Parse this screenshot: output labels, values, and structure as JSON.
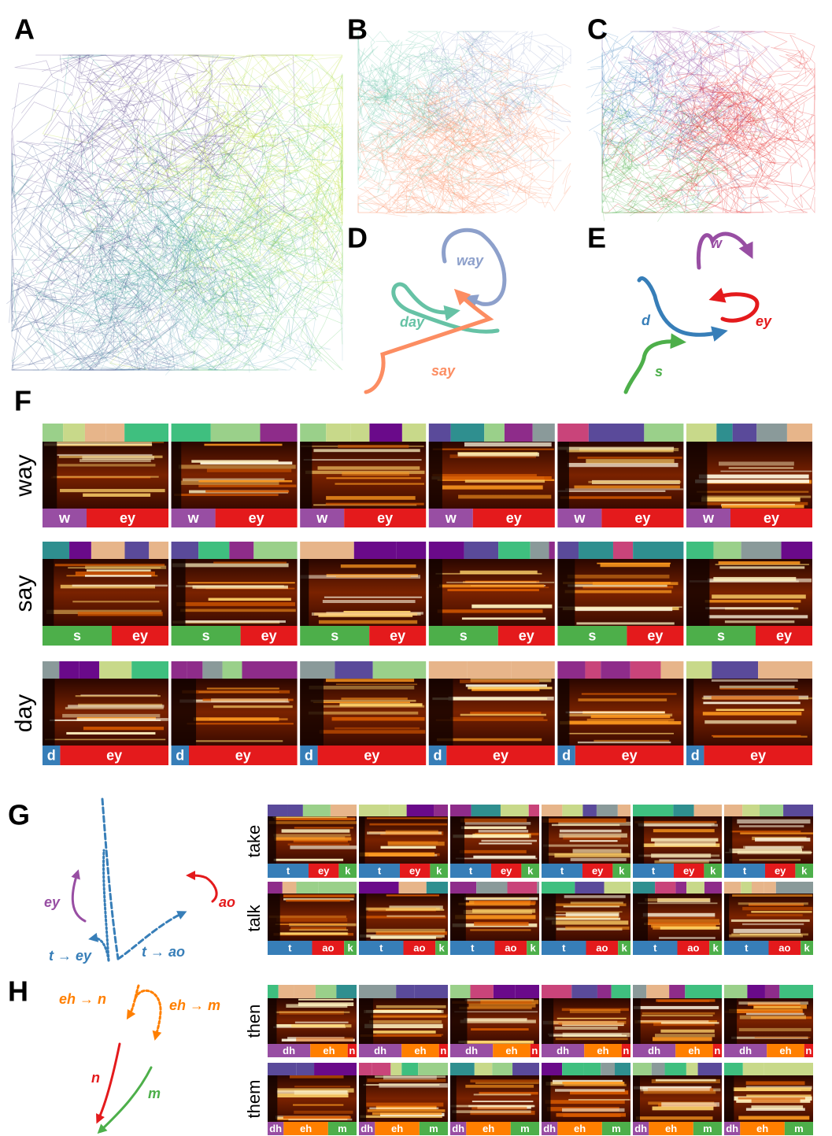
{
  "panel_labels": [
    "A",
    "B",
    "C",
    "D",
    "E",
    "F",
    "G",
    "H"
  ],
  "panel_d": {
    "labels": [
      "way",
      "day",
      "say"
    ]
  },
  "panel_e": {
    "labels": [
      "w",
      "d",
      "s",
      "ey"
    ]
  },
  "panel_f": {
    "rows": [
      {
        "word": "way",
        "phones": [
          "w",
          "ey"
        ]
      },
      {
        "word": "say",
        "phones": [
          "s",
          "ey"
        ]
      },
      {
        "word": "day",
        "phones": [
          "d",
          "ey"
        ]
      }
    ]
  },
  "panel_g": {
    "labels": [
      "ey",
      "ao",
      "t → ey",
      "t → ao"
    ],
    "rows": [
      {
        "word": "take",
        "phones": [
          "t",
          "ey",
          "k"
        ]
      },
      {
        "word": "talk",
        "phones": [
          "t",
          "ao",
          "k"
        ]
      }
    ]
  },
  "panel_h": {
    "labels": [
      "eh → n",
      "eh → m",
      "n",
      "m"
    ],
    "rows": [
      {
        "word": "then",
        "phones": [
          "dh",
          "eh",
          "n"
        ]
      },
      {
        "word": "them",
        "phones": [
          "dh",
          "eh",
          "m"
        ]
      }
    ]
  }
}
